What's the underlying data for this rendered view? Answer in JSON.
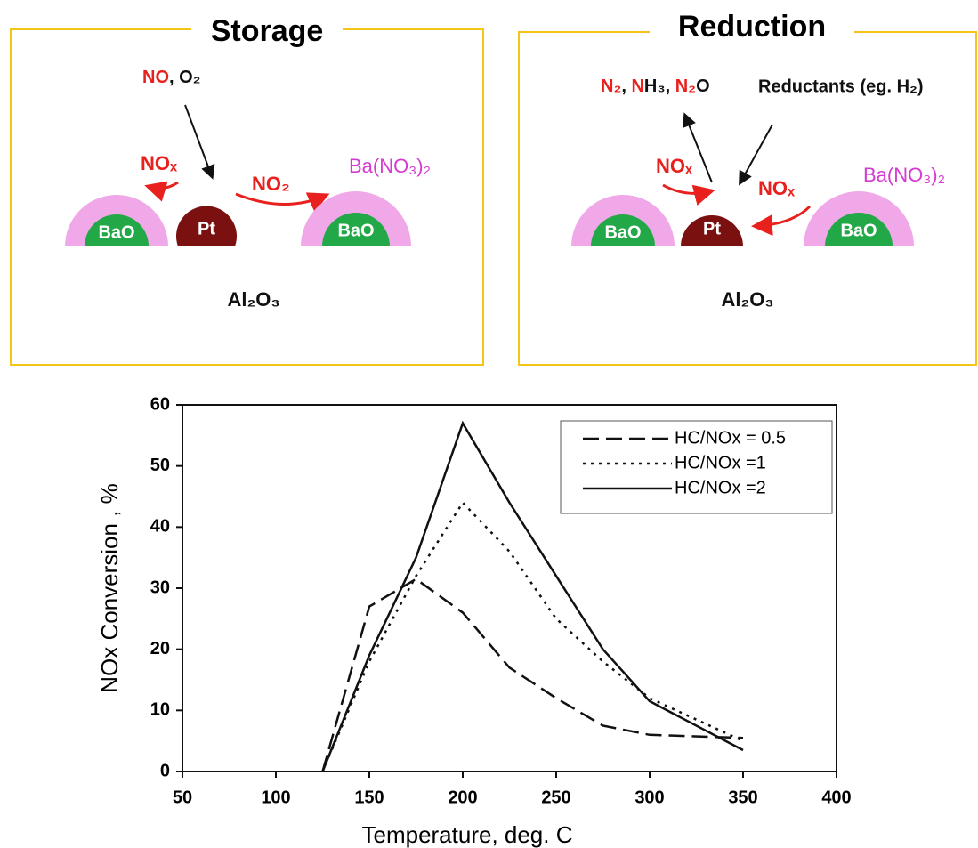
{
  "panels": [
    {
      "title": "Storage",
      "reactants": [
        "NO",
        ", O₂"
      ],
      "nox": "NOₓ",
      "no2": "NO₂",
      "nitrate": "Ba(NO₃)₂",
      "bao_left": "BaO",
      "pt": "Pt",
      "bao_right": "BaO",
      "support": "Al₂O₃"
    },
    {
      "title": "Reduction",
      "products": [
        "N₂",
        ", ",
        "N",
        "H₃, ",
        "N₂",
        "O"
      ],
      "reductants": "Reductants (eg. H₂)",
      "nox_left": "NOₓ",
      "nox_right": "NOₓ",
      "nitrate": "Ba(NO₃)₂",
      "bao_left": "BaO",
      "pt": "Pt",
      "bao_right": "BaO",
      "support": "Al₂O₃"
    }
  ],
  "chart_data": {
    "type": "line",
    "x_label": "Temperature, deg. C",
    "y_label": "NOx Conversion , %",
    "x": [
      125,
      150,
      175,
      200,
      225,
      250,
      275,
      300,
      350
    ],
    "series": [
      {
        "name": "HC/NOx = 0.5",
        "color": "#111111",
        "style": "dashed",
        "values": [
          0,
          27,
          31.5,
          26,
          17,
          12,
          7.5,
          6,
          5.5
        ]
      },
      {
        "name": "HC/NOx =1",
        "color": "#111111",
        "style": "dotted",
        "values": [
          0,
          18,
          32,
          44,
          36,
          25,
          18,
          12,
          5
        ]
      },
      {
        "name": "HC/NOx =2",
        "color": "#111111",
        "style": "solid",
        "values": [
          0,
          19,
          35,
          57,
          44,
          32,
          20,
          11.5,
          3.5
        ]
      }
    ],
    "xlim": [
      50,
      400
    ],
    "xticks": [
      50,
      100,
      150,
      200,
      250,
      300,
      350,
      400
    ],
    "ylim": [
      0,
      60
    ],
    "yticks": [
      0,
      10,
      20,
      30,
      40,
      50,
      60
    ],
    "legend": "upper right"
  }
}
